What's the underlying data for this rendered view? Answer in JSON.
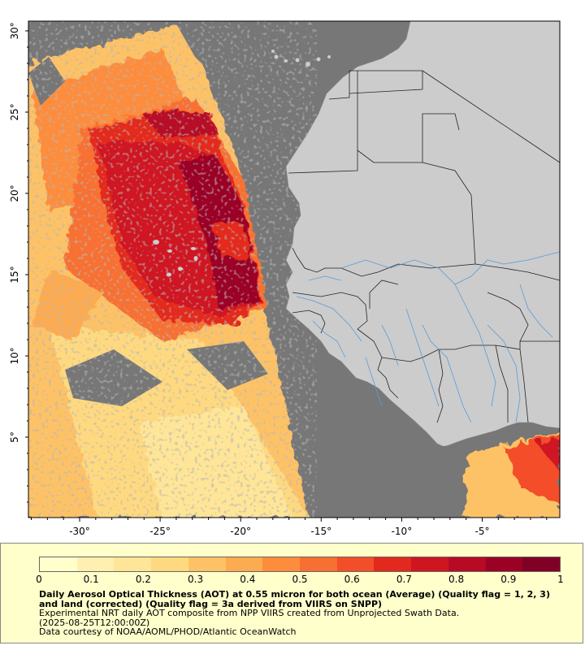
{
  "map": {
    "lat_ticks": [
      {
        "value": 30,
        "label": "30°"
      },
      {
        "value": 25,
        "label": "25°"
      },
      {
        "value": 20,
        "label": "20°"
      },
      {
        "value": 15,
        "label": "15°"
      },
      {
        "value": 10,
        "label": "10°"
      },
      {
        "value": 5,
        "label": "5°"
      }
    ],
    "lon_ticks": [
      {
        "value": -30,
        "label": "-30°"
      },
      {
        "value": -25,
        "label": "-25°"
      },
      {
        "value": -20,
        "label": "-20°"
      },
      {
        "value": -15,
        "label": "-15°"
      },
      {
        "value": -10,
        "label": "-10°"
      },
      {
        "value": -5,
        "label": "-5°"
      }
    ],
    "colors": {
      "no_data": "#777777",
      "land": "#cccccc",
      "border": "#222222",
      "river": "#5b9bd5"
    }
  },
  "legend": {
    "ticks": [
      "0",
      "0.1",
      "0.2",
      "0.3",
      "0.4",
      "0.5",
      "0.6",
      "0.7",
      "0.8",
      "0.9",
      "1"
    ],
    "colors": [
      "#ffffcc",
      "#fff0b0",
      "#fee597",
      "#fed980",
      "#fec266",
      "#fdab51",
      "#fd8d3c",
      "#f86f33",
      "#f34e2a",
      "#e3291e",
      "#cf1520",
      "#b70a25",
      "#9b0125",
      "#800026"
    ],
    "title": "Daily Aerosol Optical Thickness (AOT) at 0.55 micron for both ocean (Average) (Quality flag = 1, 2, 3) and land (corrected) (Quality flag = 3a derived from VIIRS on SNPP)",
    "line1": "Experimental NRT daily AOT composite from NPP VIIRS created from Unprojected Swath Data.",
    "line2": "(2025-08-25T12:00:00Z)",
    "line3": "Data courtesy of NOAA/AOML/PHOD/Atlantic OceanWatch"
  }
}
